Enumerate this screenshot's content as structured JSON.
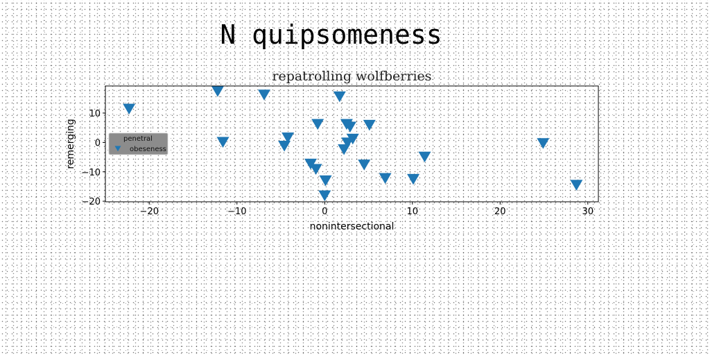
{
  "figure": {
    "suptitle": "N quipsomeness"
  },
  "chart_data": {
    "type": "scatter",
    "title": "repatrolling wolfberries",
    "xlabel": "nonintersectional",
    "ylabel": "remerging",
    "xlim": [
      -25,
      31.2
    ],
    "ylim": [
      -20.2,
      19.2
    ],
    "xticks": [
      -20,
      -10,
      0,
      10,
      20,
      30
    ],
    "yticks": [
      -20,
      -10,
      0,
      10
    ],
    "xtick_labels": [
      "−20",
      "−10",
      "0",
      "10",
      "20",
      "30"
    ],
    "ytick_labels": [
      "−20",
      "−10",
      "0",
      "10"
    ],
    "grid": false,
    "legend": {
      "title": "penetral",
      "placement": "center-left",
      "background": "#8c8c8c"
    },
    "series": [
      {
        "name": "obeseness",
        "marker": "triangle-down",
        "color": "#1f77b4",
        "points": [
          {
            "x": -22.3,
            "y": 11.5
          },
          {
            "x": -12.2,
            "y": 17.5
          },
          {
            "x": -6.9,
            "y": 16.3
          },
          {
            "x": -11.6,
            "y": 0.2
          },
          {
            "x": -4.2,
            "y": 1.7
          },
          {
            "x": -4.6,
            "y": -1.1
          },
          {
            "x": -0.8,
            "y": 6.3
          },
          {
            "x": 1.7,
            "y": 15.7
          },
          {
            "x": 2.5,
            "y": 6.3
          },
          {
            "x": 2.9,
            "y": 5.4
          },
          {
            "x": 5.1,
            "y": 6.0
          },
          {
            "x": 3.2,
            "y": 1.3
          },
          {
            "x": 2.6,
            "y": 0.0
          },
          {
            "x": 2.2,
            "y": -2.3
          },
          {
            "x": -1.6,
            "y": -7.2
          },
          {
            "x": -1.0,
            "y": -9.0
          },
          {
            "x": 0.1,
            "y": -12.9
          },
          {
            "x": 0.0,
            "y": -18.0
          },
          {
            "x": 4.5,
            "y": -7.5
          },
          {
            "x": 6.9,
            "y": -12.1
          },
          {
            "x": 10.1,
            "y": -12.4
          },
          {
            "x": 11.4,
            "y": -4.8
          },
          {
            "x": 24.9,
            "y": -0.2
          },
          {
            "x": 28.7,
            "y": -14.4
          }
        ]
      }
    ]
  }
}
